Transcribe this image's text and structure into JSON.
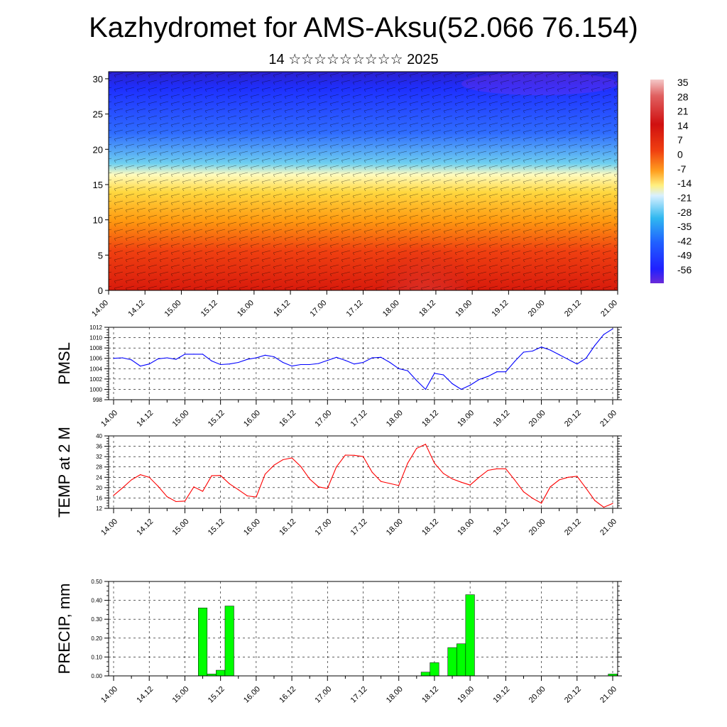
{
  "title": "Kazhydromet for AMS-Aksu(52.066 76.154)",
  "subtitle": "14 ☆☆☆☆☆☆☆☆☆ 2025",
  "colorbar_labels": [
    "35",
    "28",
    "21",
    "14",
    "7",
    "0",
    "-7",
    "-14",
    "-21",
    "-28",
    "-35",
    "-42",
    "-49",
    "-56"
  ],
  "colors": {
    "pmsl_line": "#0000ff",
    "temp_line": "#ff0000",
    "precip_bar": "#00ff00",
    "cross_section_cold": "#2200ee",
    "cross_section_warm": "#ee2200"
  },
  "time_labels": [
    "14.00",
    "14.12",
    "15.00",
    "15.12",
    "16.00",
    "16.12",
    "17.00",
    "17.12",
    "18.00",
    "18.12",
    "19.00",
    "19.12",
    "20.00",
    "20.12",
    "21.00"
  ],
  "chart_data": [
    {
      "type": "heatmap",
      "name": "cross_section",
      "title": "",
      "xlabel": "",
      "ylabel": "",
      "x_ticks": [
        "14.00",
        "14.12",
        "15.00",
        "15.12",
        "16.00",
        "16.12",
        "17.00",
        "17.12",
        "18.00",
        "18.12",
        "19.00",
        "19.12",
        "20.00",
        "20.12",
        "21.00"
      ],
      "y_ticks": [
        0,
        5,
        10,
        15,
        20,
        25,
        30
      ],
      "ylim": [
        0,
        31
      ],
      "colorbar_range": [
        -56,
        35
      ],
      "legend": "right"
    },
    {
      "type": "line",
      "name": "pmsl",
      "ylabel": "PMSL",
      "ylim": [
        998,
        1012
      ],
      "y_ticks": [
        998,
        1000,
        1002,
        1004,
        1006,
        1008,
        1010,
        1012
      ],
      "grid": true,
      "x_ticks": [
        "14.00",
        "14.12",
        "15.00",
        "15.12",
        "16.00",
        "16.12",
        "17.00",
        "17.12",
        "18.00",
        "18.12",
        "19.00",
        "19.12",
        "20.00",
        "20.12",
        "21.00"
      ],
      "x": [
        0,
        3,
        6,
        9,
        12,
        15,
        18,
        21,
        24,
        27,
        30,
        33,
        36,
        39,
        42,
        45,
        48,
        51,
        54,
        57,
        60,
        63,
        66,
        69,
        72,
        75,
        78,
        81,
        84,
        87,
        90,
        93,
        96,
        99,
        102,
        105,
        108,
        111,
        114,
        117,
        120,
        123,
        126,
        129,
        132,
        135,
        138,
        141,
        144,
        147,
        150,
        153,
        156,
        159,
        162,
        165,
        168
      ],
      "values": [
        1006.0,
        1006.1,
        1005.7,
        1004.5,
        1004.9,
        1005.9,
        1006.1,
        1005.8,
        1006.8,
        1006.8,
        1006.8,
        1005.5,
        1004.8,
        1004.9,
        1005.2,
        1005.8,
        1006.1,
        1006.6,
        1006.3,
        1005.2,
        1004.5,
        1004.8,
        1004.8,
        1005.0,
        1005.6,
        1006.2,
        1005.6,
        1004.9,
        1005.2,
        1006.1,
        1006.2,
        1005.2,
        1004.0,
        1003.6,
        1001.7,
        1000.0,
        1003.1,
        1002.8,
        1001.1,
        1000.0,
        1000.8,
        1001.9,
        1002.5,
        1003.4,
        1003.4,
        1005.4,
        1007.2,
        1007.4,
        1008.2,
        1007.6,
        1006.7,
        1005.8,
        1004.9,
        1006.0,
        1008.5,
        1010.6,
        1011.7
      ]
    },
    {
      "type": "line",
      "name": "temp2m",
      "ylabel": "TEMP at 2 M",
      "ylim": [
        12,
        40
      ],
      "y_ticks": [
        12,
        16,
        20,
        24,
        28,
        32,
        36,
        40
      ],
      "grid": true,
      "x_ticks": [
        "14.00",
        "14.12",
        "15.00",
        "15.12",
        "16.00",
        "16.12",
        "17.00",
        "17.12",
        "18.00",
        "18.12",
        "19.00",
        "19.12",
        "20.00",
        "20.12",
        "21.00"
      ],
      "x": [
        0,
        3,
        6,
        9,
        12,
        15,
        18,
        21,
        24,
        27,
        30,
        33,
        36,
        39,
        42,
        45,
        48,
        51,
        54,
        57,
        60,
        63,
        66,
        69,
        72,
        75,
        78,
        81,
        84,
        87,
        90,
        93,
        96,
        99,
        102,
        105,
        108,
        111,
        114,
        117,
        120,
        123,
        126,
        129,
        132,
        135,
        138,
        141,
        144,
        147,
        150,
        153,
        156,
        159,
        162,
        165,
        168
      ],
      "values": [
        17.0,
        19.9,
        23.0,
        25.0,
        24.0,
        20.5,
        16.5,
        14.6,
        14.8,
        20.3,
        18.6,
        24.6,
        24.7,
        21.5,
        19.2,
        16.8,
        16.4,
        25.2,
        28.7,
        30.8,
        31.5,
        28.2,
        23.3,
        20.3,
        19.7,
        28.0,
        32.6,
        32.5,
        32.0,
        26.0,
        22.4,
        21.6,
        20.8,
        29.5,
        35.2,
        36.8,
        29.5,
        25.5,
        23.4,
        22.1,
        21.0,
        24.0,
        26.7,
        27.3,
        27.3,
        23.0,
        18.4,
        15.9,
        14.0,
        20.3,
        23.0,
        24.0,
        24.4,
        19.8,
        15.0,
        12.4,
        13.9
      ]
    },
    {
      "type": "bar",
      "name": "precip",
      "ylabel": "PRECIP, mm",
      "ylim": [
        0,
        0.5
      ],
      "y_ticks": [
        "0.00",
        "0.10",
        "0.20",
        "0.30",
        "0.40",
        "0.50"
      ],
      "grid": true,
      "x_ticks": [
        "14.00",
        "14.12",
        "15.00",
        "15.12",
        "16.00",
        "16.12",
        "17.00",
        "17.12",
        "18.00",
        "18.12",
        "19.00",
        "19.12",
        "20.00",
        "20.12",
        "21.00"
      ],
      "x": [
        30,
        33,
        36,
        39,
        105,
        108,
        114,
        117,
        120,
        168
      ],
      "values": [
        0.36,
        0.01,
        0.03,
        0.37,
        0.02,
        0.07,
        0.15,
        0.17,
        0.43,
        0.01
      ]
    }
  ]
}
